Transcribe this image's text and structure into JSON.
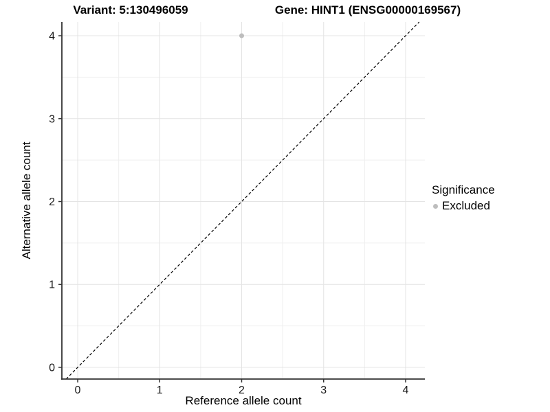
{
  "titles": {
    "left": "Variant: 5:130496059",
    "right": "Gene: HINT1 (ENSG00000169567)"
  },
  "chart_data": {
    "type": "scatter",
    "title_left": "Variant: 5:130496059",
    "title_right": "Gene: HINT1 (ENSG00000169567)",
    "xlabel": "Reference allele count",
    "ylabel": "Alternative allele count",
    "xlim": [
      -0.193,
      4.235
    ],
    "ylim": [
      -0.141,
      4.166
    ],
    "x_ticks": [
      0,
      1,
      2,
      3,
      4
    ],
    "y_ticks": [
      0,
      1,
      2,
      3,
      4
    ],
    "x_minor_ticks": [
      0.5,
      1.5,
      2.5,
      3.5
    ],
    "y_minor_ticks": [
      0.5,
      1.5,
      2.5,
      3.5
    ],
    "grid": true,
    "points": [
      {
        "x": 2,
        "y": 4,
        "series": "Excluded",
        "color": "#bdbdbd",
        "radius": 3.5
      }
    ],
    "reference_line": {
      "type": "abline",
      "slope": 1,
      "intercept": 0,
      "dashed": true,
      "color": "#000000"
    },
    "legend": {
      "title": "Significance",
      "position": "right",
      "items": [
        {
          "label": "Excluded",
          "color": "#bdbdbd"
        }
      ]
    },
    "colors": {
      "background": "#ffffff",
      "grid_major": "#e4e4e4",
      "grid_minor": "#efefef",
      "axis_line": "#333333",
      "tick_text": "#1a1a1a",
      "point": "#bdbdbd"
    }
  }
}
